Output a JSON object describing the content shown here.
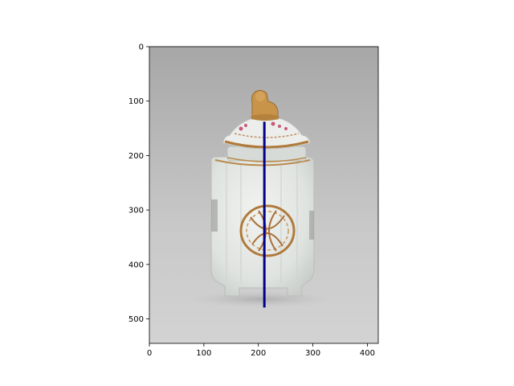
{
  "chart_data": {
    "type": "image",
    "image_subject": "porcelain tea caddy with lid",
    "x_ticks": [
      0,
      100,
      200,
      300,
      400
    ],
    "y_ticks": [
      0,
      100,
      200,
      300,
      400,
      500
    ],
    "xlim": [
      0,
      420
    ],
    "ylim": [
      545,
      0
    ],
    "overlay_line": {
      "color": "#00008b",
      "x": [
        211,
        211
      ],
      "y": [
        138,
        479
      ]
    }
  },
  "colors": {
    "background_top": "#a6a6a6",
    "background_bottom": "#d2d2d2",
    "porcelain": "#e8ebe7",
    "gilt": "#b07a3c",
    "overlay": "#00008b"
  }
}
